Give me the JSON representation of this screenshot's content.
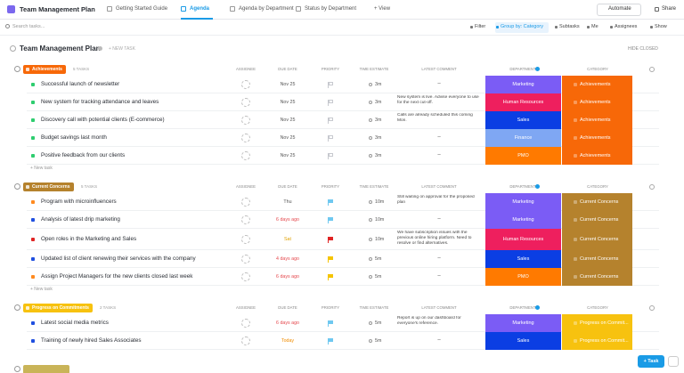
{
  "top_bar": {
    "title": "Team Management Plan",
    "tabs": [
      "Getting Started Guide",
      "Agenda",
      "Agenda by Department",
      "Status by Department",
      "+ View"
    ],
    "active_tab": 1,
    "actions": [
      "Automate",
      "Share"
    ]
  },
  "toolbar": {
    "search_placeholder": "Search tasks...",
    "buttons": [
      "Filter",
      "Group by: Category",
      "Subtasks",
      "Me",
      "Assignees",
      "Show"
    ],
    "active_button": 1
  },
  "list": {
    "title": "Team Management Plan",
    "new_task": "+ NEW TASK",
    "hide_closed": "HIDE CLOSED",
    "columns": [
      "ASSIGNEE",
      "DUE DATE",
      "PRIORITY",
      "TIME ESTIMATE",
      "LATEST COMMENT",
      "DEPARTMENT",
      "CATEGORY"
    ],
    "new_task_row": "+ New task",
    "groups": [
      {
        "name": "Achievements",
        "color": "#f76808",
        "count_label": "5 TASKS",
        "tasks": [
          {
            "name": "Successful launch of newsletter",
            "status_color": "#2ecd6f",
            "due": "Nov 25",
            "due_color": "#555",
            "priority_color": "#c7c9cf",
            "time": "3m",
            "comment": "–",
            "department": "Marketing",
            "department_color": "#7b5cf5",
            "category": "Achievements"
          },
          {
            "name": "New system for tracking attendance and leaves",
            "status_color": "#2ecd6f",
            "due": "Nov 25",
            "due_color": "#555",
            "priority_color": "#c7c9cf",
            "time": "3m",
            "comment": "New system is live. Advise everyone to use for the next cut-off.",
            "department": "Human Resources",
            "department_color": "#ee1f5e",
            "category": "Achievements"
          },
          {
            "name": "Discovery call with potential clients (E-commerce)",
            "status_color": "#2ecd6f",
            "due": "Nov 25",
            "due_color": "#555",
            "priority_color": "#c7c9cf",
            "time": "3m",
            "comment": "Calls are already scheduled this coming Mon.",
            "department": "Sales",
            "department_color": "#0b3ee3",
            "category": "Achievements"
          },
          {
            "name": "Budget savings last month",
            "status_color": "#2ecd6f",
            "due": "Nov 25",
            "due_color": "#555",
            "priority_color": "#c7c9cf",
            "time": "3m",
            "comment": "–",
            "department": "Finance",
            "department_color": "#7fa7f3",
            "category": "Achievements"
          },
          {
            "name": "Positive feedback from our clients",
            "status_color": "#2ecd6f",
            "due": "Nov 25",
            "due_color": "#555",
            "priority_color": "#c7c9cf",
            "time": "3m",
            "comment": "–",
            "department": "PMO",
            "department_color": "#ff7a00",
            "category": "Achievements"
          }
        ]
      },
      {
        "name": "Current Concerns",
        "color": "#b5822d",
        "count_label": "5 TASKS",
        "tasks": [
          {
            "name": "Program with microinfluencers",
            "status_color": "#ff8a1f",
            "due": "Thu",
            "due_color": "#555",
            "priority_color": "#6fc8f0",
            "time": "10m",
            "comment": "Still waiting on approval for the proposed plan",
            "department": "Marketing",
            "department_color": "#7b5cf5",
            "category": "Current Concerns"
          },
          {
            "name": "Analysis of latest drip marketing",
            "status_color": "#1f4fe0",
            "due": "6 days ago",
            "due_color": "#e5484d",
            "priority_color": "#6fc8f0",
            "time": "10m",
            "comment": "–",
            "department": "Marketing",
            "department_color": "#7b5cf5",
            "category": "Current Concerns"
          },
          {
            "name": "Open roles in the Marketing and Sales",
            "status_color": "#e02424",
            "due": "Sat",
            "due_color": "#e0a000",
            "priority_color": "#e02424",
            "time": "10m",
            "comment": "We have subscription issues with the previous online hiring platform. Need to resolve or find alternatives.",
            "department": "Human Resources",
            "department_color": "#ee1f5e",
            "category": "Current Concerns"
          },
          {
            "name": "Updated list of client renewing their services with the company",
            "status_color": "#1f4fe0",
            "due": "4 days ago",
            "due_color": "#e5484d",
            "priority_color": "#f5c400",
            "time": "5m",
            "comment": "–",
            "department": "Sales",
            "department_color": "#0b3ee3",
            "category": "Current Concerns"
          },
          {
            "name": "Assign Project Managers for the new clients closed last week",
            "status_color": "#ff8a1f",
            "due": "6 days ago",
            "due_color": "#e5484d",
            "priority_color": "#f5c400",
            "time": "5m",
            "comment": "–",
            "department": "PMO",
            "department_color": "#ff7a00",
            "category": "Current Concerns"
          }
        ]
      },
      {
        "name": "Progress on Commitments",
        "color": "#f7c20f",
        "count_label": "2 TASKS",
        "tasks": [
          {
            "name": "Latest social media metrics",
            "status_color": "#1f4fe0",
            "due": "6 days ago",
            "due_color": "#e5484d",
            "priority_color": "#6fc8f0",
            "time": "5m",
            "comment": "Report is up on our dashboard for everyone's reference.",
            "department": "Marketing",
            "department_color": "#7b5cf5",
            "category": "Progress on Commit..."
          },
          {
            "name": "Training of newly hired Sales Associates",
            "status_color": "#1f4fe0",
            "due": "Today",
            "due_color": "#f08c00",
            "priority_color": "#6fc8f0",
            "time": "5m",
            "comment": "–",
            "department": "Sales",
            "department_color": "#0b3ee3",
            "category": "Progress on Commit..."
          }
        ]
      }
    ]
  },
  "fab": "+ Task"
}
